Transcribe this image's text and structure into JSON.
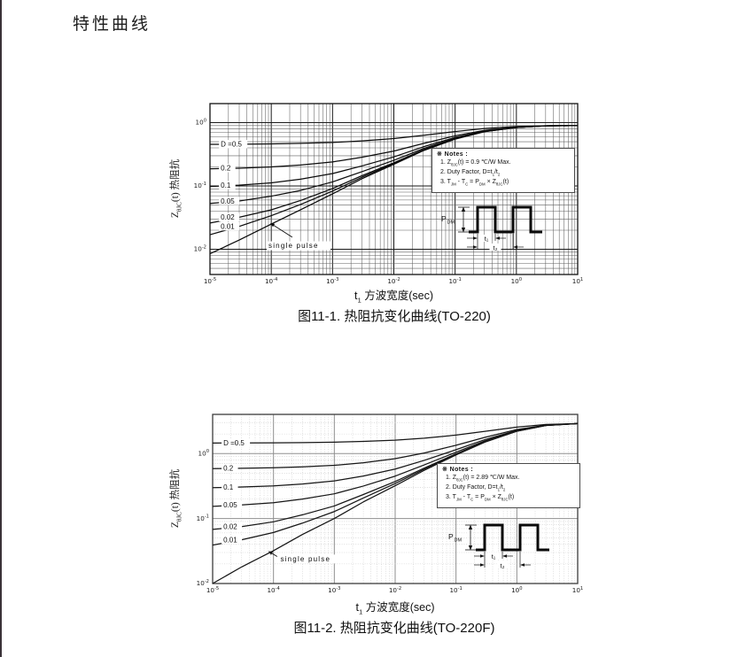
{
  "page": {
    "title": "特性曲线"
  },
  "figure1": {
    "caption": "图11-1. 热阻抗变化曲线(TO-220)",
    "xlabel_html": "t<sub>1</sub> 方波宽度(sec)",
    "ylabel_html": "Z<sub>θJC</sub>(t) 热阻抗",
    "notes": [
      "※ Notes :",
      "1. Z<sub>θJC</sub>(t) = 0.9 ℃/W Max.",
      "2. Duty Factor, D=t<sub>1</sub>/t<sub>2</sub>",
      "3. T<sub>JM</sub> - T<sub>C</sub> = P<sub>DM</sub> × Z<sub>θJC</sub>(t)"
    ]
  },
  "figure2": {
    "caption": "图11-2. 热阻抗变化曲线(TO-220F)",
    "xlabel_html": "t<sub>1</sub> 方波宽度(sec)",
    "ylabel_html": "Z<sub>θJC</sub>(t) 热阻抗",
    "notes": [
      "※ Notes :",
      "1. Z<sub>θJC</sub>(t) = 2.89 ℃/W Max.",
      "2. Duty Factor, D=t<sub>1</sub>/t<sub>2</sub>",
      "3. T<sub>JM</sub> - T<sub>C</sub> = P<sub>DM</sub> × Z<sub>θJC</sub>(t)"
    ]
  },
  "waveform": {
    "p": "P",
    "p_sub": "DM",
    "t1": "t₁",
    "t2": "t₂"
  },
  "chart_data": [
    {
      "id": "fig1",
      "type": "line",
      "title": "图11-1. 热阻抗变化曲线(TO-220)",
      "xlabel": "t1 方波宽度(sec)",
      "ylabel": "ZθJC(t) 热阻抗",
      "log_x": true,
      "log_y": true,
      "grid": true,
      "xlim": [
        1e-05,
        10
      ],
      "ylim": [
        0.004,
        2.0
      ],
      "x_tick_exponents": [
        -5,
        -4,
        -3,
        -2,
        -1,
        0,
        1
      ],
      "y_tick_exponents": [
        0,
        -1,
        -2
      ],
      "max_thermal_impedance_c_per_w": 0.9,
      "label_x": 1.5e-05,
      "x": [
        1e-05,
        3e-05,
        0.0001,
        0.0003,
        0.001,
        0.003,
        0.01,
        0.03,
        0.1,
        0.3,
        1,
        3,
        10
      ],
      "series": [
        {
          "label": "D =0.5",
          "y": [
            0.454,
            0.457,
            0.462,
            0.471,
            0.487,
            0.515,
            0.56,
            0.63,
            0.724,
            0.81,
            0.868,
            0.896,
            0.9
          ]
        },
        {
          "label": "0.2",
          "y": [
            0.187,
            0.191,
            0.2,
            0.214,
            0.24,
            0.284,
            0.356,
            0.468,
            0.619,
            0.756,
            0.85,
            0.893,
            0.9
          ]
        },
        {
          "label": "0.1",
          "y": [
            0.098,
            0.103,
            0.112,
            0.128,
            0.157,
            0.207,
            0.288,
            0.414,
            0.584,
            0.738,
            0.843,
            0.892,
            0.9
          ]
        },
        {
          "label": "0.05",
          "y": [
            0.053,
            0.058,
            0.069,
            0.085,
            0.116,
            0.168,
            0.254,
            0.387,
            0.567,
            0.729,
            0.84,
            0.891,
            0.9
          ]
        },
        {
          "label": "0.02",
          "y": [
            0.026,
            0.032,
            0.042,
            0.059,
            0.091,
            0.145,
            0.233,
            0.371,
            0.556,
            0.724,
            0.838,
            0.891,
            0.9
          ]
        },
        {
          "label": "0.01",
          "y": [
            0.017,
            0.023,
            0.034,
            0.051,
            0.083,
            0.137,
            0.226,
            0.365,
            0.553,
            0.722,
            0.838,
            0.891,
            0.9
          ]
        },
        {
          "label": "single pulse",
          "y": [
            0.0085,
            0.014,
            0.025,
            0.042,
            0.075,
            0.13,
            0.22,
            0.36,
            0.55,
            0.72,
            0.837,
            0.891,
            0.9
          ]
        }
      ],
      "single_pulse": {
        "text_at": [
          9e-05,
          0.0105
        ],
        "arrow": [
          0.00022,
          0.0155,
          9.6e-05,
          0.026
        ]
      },
      "style": {
        "grid_minor": "#616161",
        "grid_major": "#1a1a1a",
        "minor_dash": "",
        "border": "#111111",
        "curve": "#0c0c0c"
      }
    },
    {
      "id": "fig2",
      "type": "line",
      "title": "图11-2. 热阻抗变化曲线(TO-220F)",
      "xlabel": "t1 方波宽度(sec)",
      "ylabel": "ZθJC(t) 热阻抗",
      "log_x": true,
      "log_y": true,
      "grid": true,
      "xlim": [
        1e-05,
        10
      ],
      "ylim": [
        0.01,
        4.0
      ],
      "x_tick_exponents": [
        -5,
        -4,
        -3,
        -2,
        -1,
        0,
        1
      ],
      "y_tick_exponents": [
        0,
        -1,
        -2
      ],
      "max_thermal_impedance_c_per_w": 2.89,
      "label_x": 1.5e-05,
      "x": [
        1e-05,
        3e-05,
        0.0001,
        0.0003,
        0.001,
        0.003,
        0.01,
        0.03,
        0.1,
        0.3,
        1,
        3,
        10
      ],
      "series": [
        {
          "label": "D =0.5",
          "y": [
            1.45,
            1.454,
            1.461,
            1.474,
            1.495,
            1.535,
            1.605,
            1.72,
            1.92,
            2.195,
            2.545,
            2.795,
            2.89
          ]
        },
        {
          "label": "0.2",
          "y": [
            0.586,
            0.592,
            0.604,
            0.624,
            0.658,
            0.722,
            0.834,
            1.018,
            1.338,
            1.778,
            2.338,
            2.738,
            2.89
          ]
        },
        {
          "label": "0.1",
          "y": [
            0.298,
            0.305,
            0.318,
            0.34,
            0.379,
            0.451,
            0.577,
            0.784,
            1.144,
            1.639,
            2.269,
            2.719,
            2.89
          ]
        },
        {
          "label": "0.05",
          "y": [
            0.154,
            0.162,
            0.175,
            0.199,
            0.24,
            0.316,
            0.449,
            0.667,
            1.047,
            1.57,
            2.235,
            2.71,
            2.89
          ]
        },
        {
          "label": "0.02",
          "y": [
            0.068,
            0.075,
            0.089,
            0.114,
            0.156,
            0.234,
            0.371,
            0.597,
            0.989,
            1.528,
            2.214,
            2.704,
            2.89
          ]
        },
        {
          "label": "0.01",
          "y": [
            0.039,
            0.047,
            0.061,
            0.085,
            0.128,
            0.207,
            0.346,
            0.573,
            0.969,
            1.514,
            2.207,
            2.702,
            2.89
          ]
        },
        {
          "label": "single pulse",
          "y": [
            0.01,
            0.018,
            0.032,
            0.057,
            0.1,
            0.18,
            0.32,
            0.55,
            0.95,
            1.5,
            2.2,
            2.7,
            2.89
          ]
        }
      ],
      "single_pulse": {
        "text_at": [
          0.00013,
          0.022
        ],
        "arrow": [
          0.000115,
          0.026,
          8.2e-05,
          0.0315
        ]
      },
      "style": {
        "grid_minor": "#c6c6c6",
        "grid_major": "#8f8f8f",
        "minor_dash": "1,1.6",
        "border": "#3c3c3c",
        "curve": "#161616"
      }
    }
  ]
}
